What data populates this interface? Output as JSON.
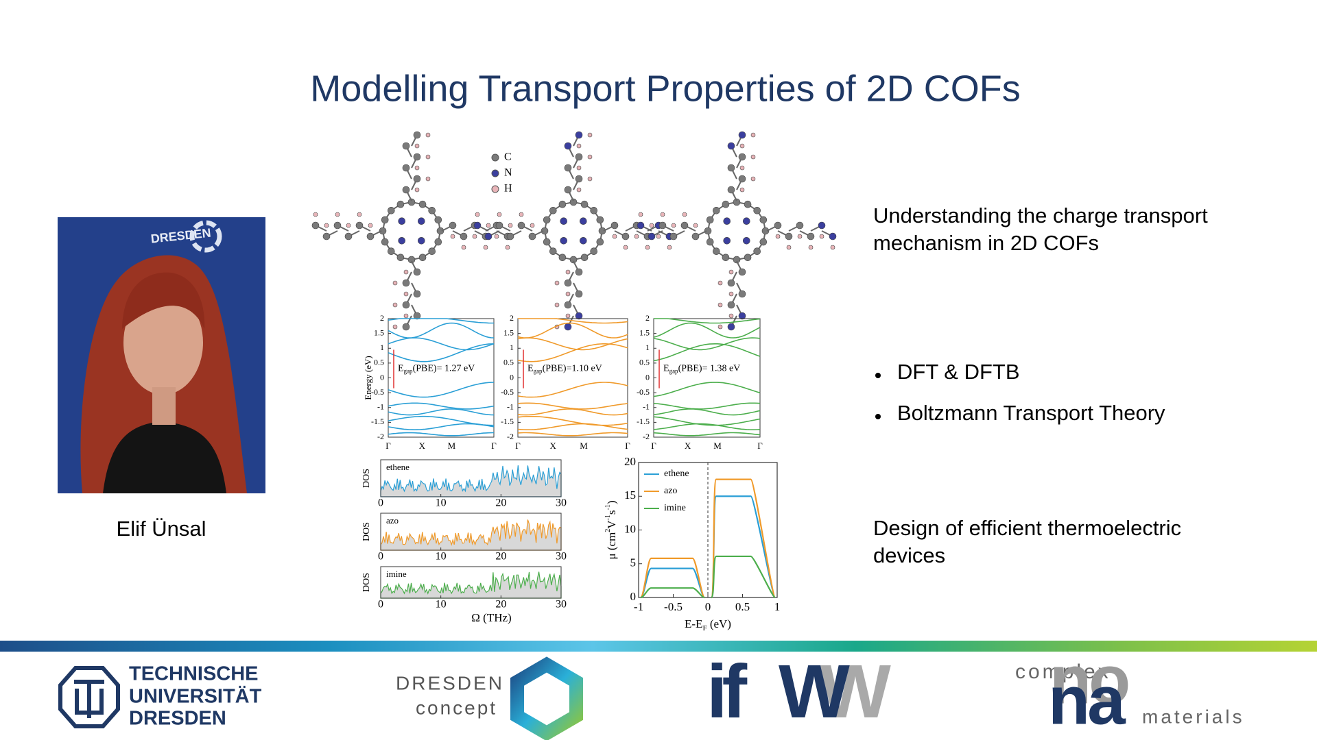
{
  "title": "Modelling Transport Properties of 2D COFs",
  "person": {
    "name": "Elif Ünsal",
    "backdrop": "DRESDEN"
  },
  "text": {
    "intro": [
      "Understanding the charge transport",
      "mechanism in 2D COFs"
    ],
    "methods": [
      "DFT & DFTB",
      "Boltzmann Transport Theory"
    ],
    "outro": [
      "Design of efficient thermoelectric",
      "devices"
    ]
  },
  "figure": {
    "atoms": [
      {
        "label": "C",
        "color": "#7a7a7a"
      },
      {
        "label": "N",
        "color": "#3b3f9e"
      },
      {
        "label": "H",
        "color": "#e8b4b8"
      }
    ],
    "bands": {
      "y_label": "Energy (eV)",
      "ylim": [
        -2,
        2
      ],
      "yticks": [
        -2,
        -1.5,
        -1,
        -0.5,
        0,
        0.5,
        1,
        1.5,
        2
      ],
      "xticks": [
        "Γ",
        "X",
        "M",
        "Γ"
      ],
      "panels": [
        {
          "color": "#2a9fd6",
          "gap": {
            "symbol": "E",
            "subscript": "gap",
            "text": "(PBE)= 1.27 eV"
          }
        },
        {
          "color": "#f09a2a",
          "gap": {
            "symbol": "E",
            "subscript": "gap",
            "text": "(PBE)=1.10 eV"
          }
        },
        {
          "color": "#4cae4c",
          "gap": {
            "symbol": "E",
            "subscript": "gap",
            "text": "(PBE)= 1.38 eV"
          }
        }
      ]
    },
    "dos": {
      "y_label": "DOS",
      "x_label": "Ω (THz)",
      "xlim": [
        0,
        30
      ],
      "xticks": [
        0,
        10,
        20,
        30
      ],
      "panels": [
        {
          "name": "ethene",
          "color": "#2a9fd6"
        },
        {
          "name": "azo",
          "color": "#f09a2a"
        },
        {
          "name": "imine",
          "color": "#4cae4c"
        }
      ]
    },
    "mobility": {
      "type": "line",
      "y_label": {
        "symbol": "μ (cm",
        "parts": [
          "2",
          "V",
          "-1",
          "s",
          "-1",
          ")"
        ]
      },
      "x_label": {
        "symbol": "E-E",
        "subscript": "F",
        "text": " (eV)"
      },
      "xlim": [
        -1,
        1
      ],
      "ylim": [
        0,
        20
      ],
      "xticks": [
        -1,
        -0.5,
        0,
        0.5,
        1
      ],
      "yticks": [
        0,
        5,
        10,
        15,
        20
      ],
      "series": [
        {
          "name": "ethene",
          "color": "#2a9fd6",
          "values": [
            4.3,
            15
          ]
        },
        {
          "name": "azo",
          "color": "#f09a2a",
          "values": [
            5.8,
            17.5
          ]
        },
        {
          "name": "imine",
          "color": "#4cae4c",
          "values": [
            1.4,
            6.1
          ]
        }
      ]
    }
  },
  "logos": {
    "tu": [
      "TECHNISCHE",
      "UNIVERSITÄT",
      "DRESDEN"
    ],
    "concept": [
      "DRESDEN",
      "concept"
    ],
    "ifw": [
      "if",
      "W"
    ],
    "nano": [
      "complex",
      "na",
      "no",
      "materials"
    ]
  }
}
